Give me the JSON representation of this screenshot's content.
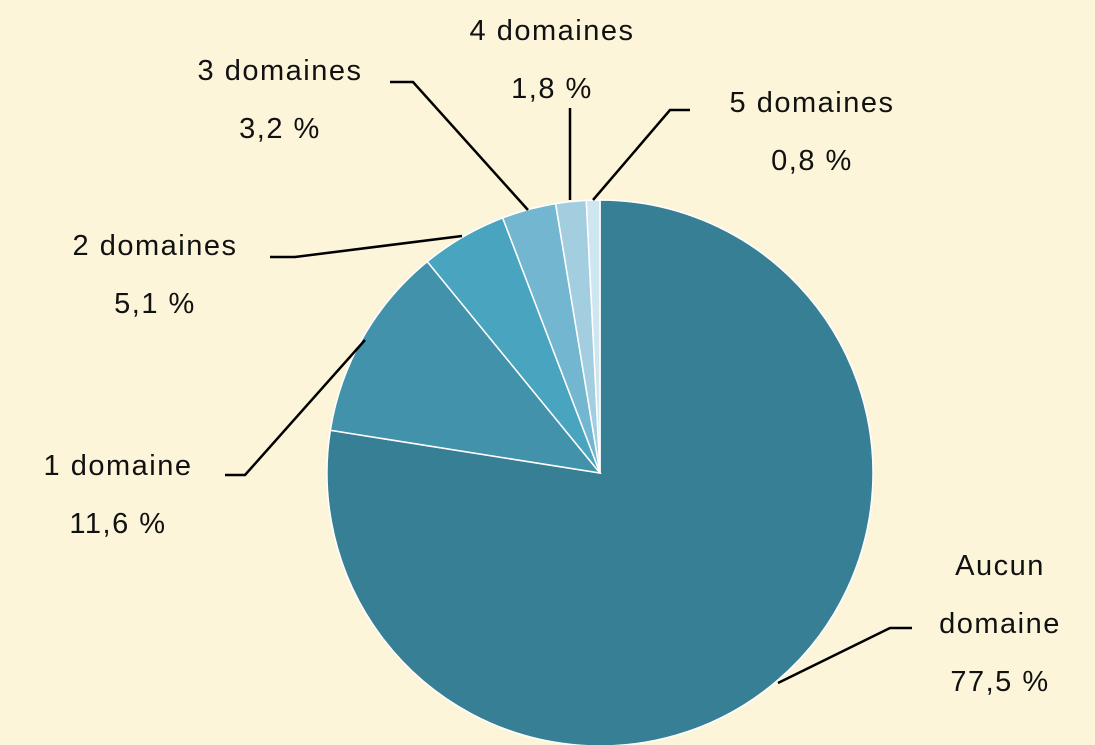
{
  "chart_data": {
    "type": "pie",
    "categories": [
      "Aucun domaine",
      "1 domaine",
      "2 domaines",
      "3 domaines",
      "4 domaines",
      "5 domaines"
    ],
    "values": [
      77.5,
      11.6,
      5.1,
      3.2,
      1.8,
      0.8
    ],
    "value_labels": [
      "77,5 %",
      "11,6 %",
      "5,1 %",
      "3,2 %",
      "1,8 %",
      "0,8 %"
    ],
    "colors": [
      "#377f95",
      "#4292ab",
      "#48a4bf",
      "#72b7cf",
      "#a3cee0",
      "#cfe5ef"
    ]
  }
}
